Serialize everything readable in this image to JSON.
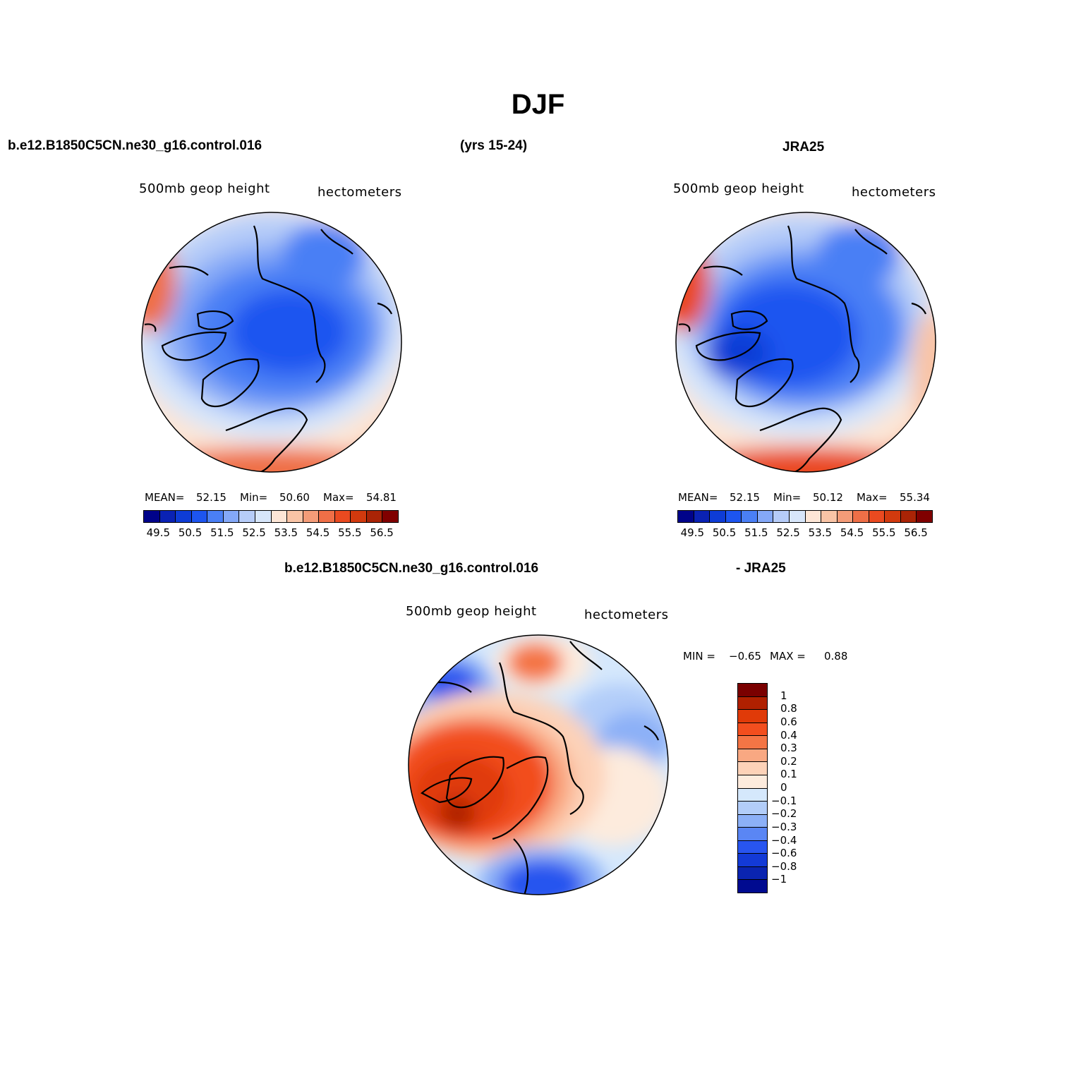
{
  "title": "DJF",
  "header": {
    "left_case": "b.e12.B1850C5CN.ne30_g16.control.016",
    "years": "(yrs 15-24)",
    "right_case": "JRA25",
    "diff_case": "b.e12.B1850C5CN.ne30_g16.control.016",
    "diff_minus": "- JRA25"
  },
  "panels": {
    "model": {
      "variable": "500mb geop height",
      "units": "hectometers",
      "mean_label": "MEAN=",
      "mean": "52.15",
      "min_label": "Min=",
      "min": "50.60",
      "max_label": "Max=",
      "max": "54.81"
    },
    "obs": {
      "variable": "500mb geop height",
      "units": "hectometers",
      "mean_label": "MEAN=",
      "mean": "52.15",
      "min_label": "Min=",
      "min": "50.12",
      "max_label": "Max=",
      "max": "55.34"
    },
    "diff": {
      "variable": "500mb geop height",
      "units": "hectometers",
      "min_label": "MIN =",
      "min": "−0.65",
      "max_label": "MAX =",
      "max": "0.88"
    }
  },
  "colorbars": {
    "abs_colors": [
      "#00038a",
      "#0a22b4",
      "#0e3cd6",
      "#1d55f0",
      "#4a7ff5",
      "#84a8f7",
      "#b6ccf8",
      "#d7e6fa",
      "#fde6d6",
      "#f9c4a6",
      "#f49c78",
      "#ef6f47",
      "#ea4a20",
      "#d23a0e",
      "#aa2406",
      "#800000"
    ],
    "abs_ticks": [
      "49.5",
      "50.5",
      "51.5",
      "52.5",
      "53.5",
      "54.5",
      "55.5",
      "56.5"
    ],
    "diff_colors": [
      "#7a0000",
      "#b02000",
      "#e03a08",
      "#f24e1e",
      "#f47545",
      "#f9a882",
      "#fdd2b8",
      "#fdebdd",
      "#d5e8fc",
      "#b2cdf9",
      "#8cb0f7",
      "#5a86f4",
      "#2855ef",
      "#133ad6",
      "#0a24b0",
      "#000a90"
    ],
    "diff_ticks": [
      "1",
      "0.8",
      "0.6",
      "0.4",
      "0.3",
      "0.2",
      "0.1",
      "0",
      "−0.1",
      "−0.2",
      "−0.3",
      "−0.4",
      "−0.6",
      "−0.8",
      "−1"
    ]
  }
}
